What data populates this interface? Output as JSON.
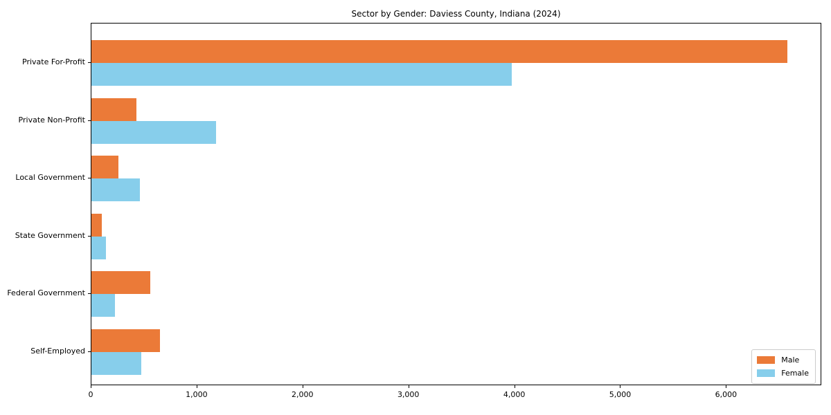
{
  "chart_data": {
    "type": "bar",
    "orientation": "horizontal",
    "title": "Sector by Gender: Daviess County, Indiana (2024)",
    "categories": [
      "Private For-Profit",
      "Private Non-Profit",
      "Local Government",
      "State Government",
      "Federal Government",
      "Self-Employed"
    ],
    "series": [
      {
        "name": "Male",
        "color": "#eb7a38",
        "values": [
          6570,
          425,
          255,
          100,
          555,
          645
        ]
      },
      {
        "name": "Female",
        "color": "#87ceeb",
        "values": [
          3970,
          1175,
          460,
          140,
          225,
          470
        ]
      }
    ],
    "xlim": [
      0,
      6900
    ],
    "xticks": [
      0,
      1000,
      2000,
      3000,
      4000,
      5000,
      6000
    ],
    "xtick_labels": [
      "0",
      "1,000",
      "2,000",
      "3,000",
      "4,000",
      "5,000",
      "6,000"
    ],
    "xlabel": "",
    "ylabel": "",
    "grid": false,
    "legend": {
      "position": "lower right",
      "entries": [
        "Male",
        "Female"
      ]
    }
  }
}
